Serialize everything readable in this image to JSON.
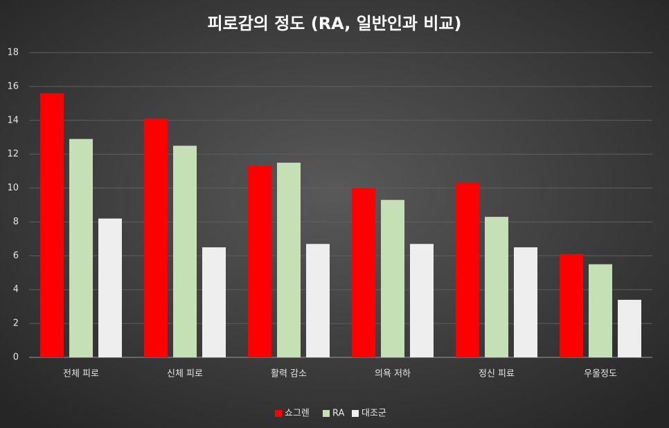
{
  "chart_data": {
    "type": "bar",
    "title": "피로감의 정도 (RA, 일반인과 비교)",
    "categories": [
      "전체 피로",
      "신체 피로",
      "활력 감소",
      "의욕 저하",
      "정신 피료",
      "우울정도"
    ],
    "series": [
      {
        "name": "쇼그렌",
        "color": "#ff0000",
        "values": [
          15.6,
          14.1,
          11.3,
          10.0,
          10.3,
          6.1
        ]
      },
      {
        "name": "RA",
        "color": "#c5e0b4",
        "values": [
          12.9,
          12.5,
          11.5,
          9.3,
          8.3,
          5.5
        ]
      },
      {
        "name": "대조군",
        "color": "#eeeeee",
        "values": [
          8.2,
          6.5,
          6.7,
          6.7,
          6.5,
          3.4
        ]
      }
    ],
    "ylim": [
      0,
      18
    ],
    "yticks": [
      0,
      2,
      4,
      6,
      8,
      10,
      12,
      14,
      16,
      18
    ],
    "grid": true,
    "legend": "bottom"
  }
}
